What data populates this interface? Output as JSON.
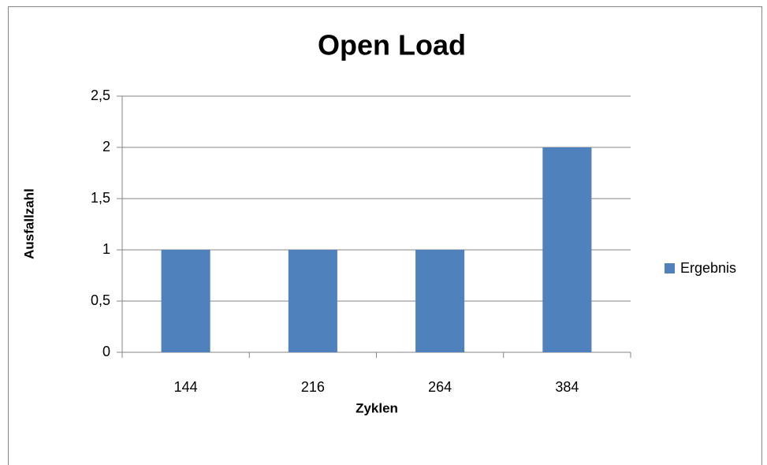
{
  "chart_data": {
    "type": "bar",
    "title": "Open Load",
    "x_label": "Zyklen",
    "y_label": "Ausfallzahl",
    "categories": [
      "144",
      "216",
      "264",
      "384"
    ],
    "series": [
      {
        "name": "Ergebnis",
        "color": "#4f81bd",
        "values": [
          1,
          1,
          1,
          2
        ]
      }
    ],
    "ylim": [
      0,
      2.5
    ],
    "yticks": [
      0,
      {
        "value": 0.5,
        "label": "0,5"
      },
      1,
      {
        "value": 1.5,
        "label": "1,5"
      },
      2,
      {
        "value": 2.5,
        "label": "2,5"
      }
    ],
    "grid": true,
    "legend": "right"
  }
}
